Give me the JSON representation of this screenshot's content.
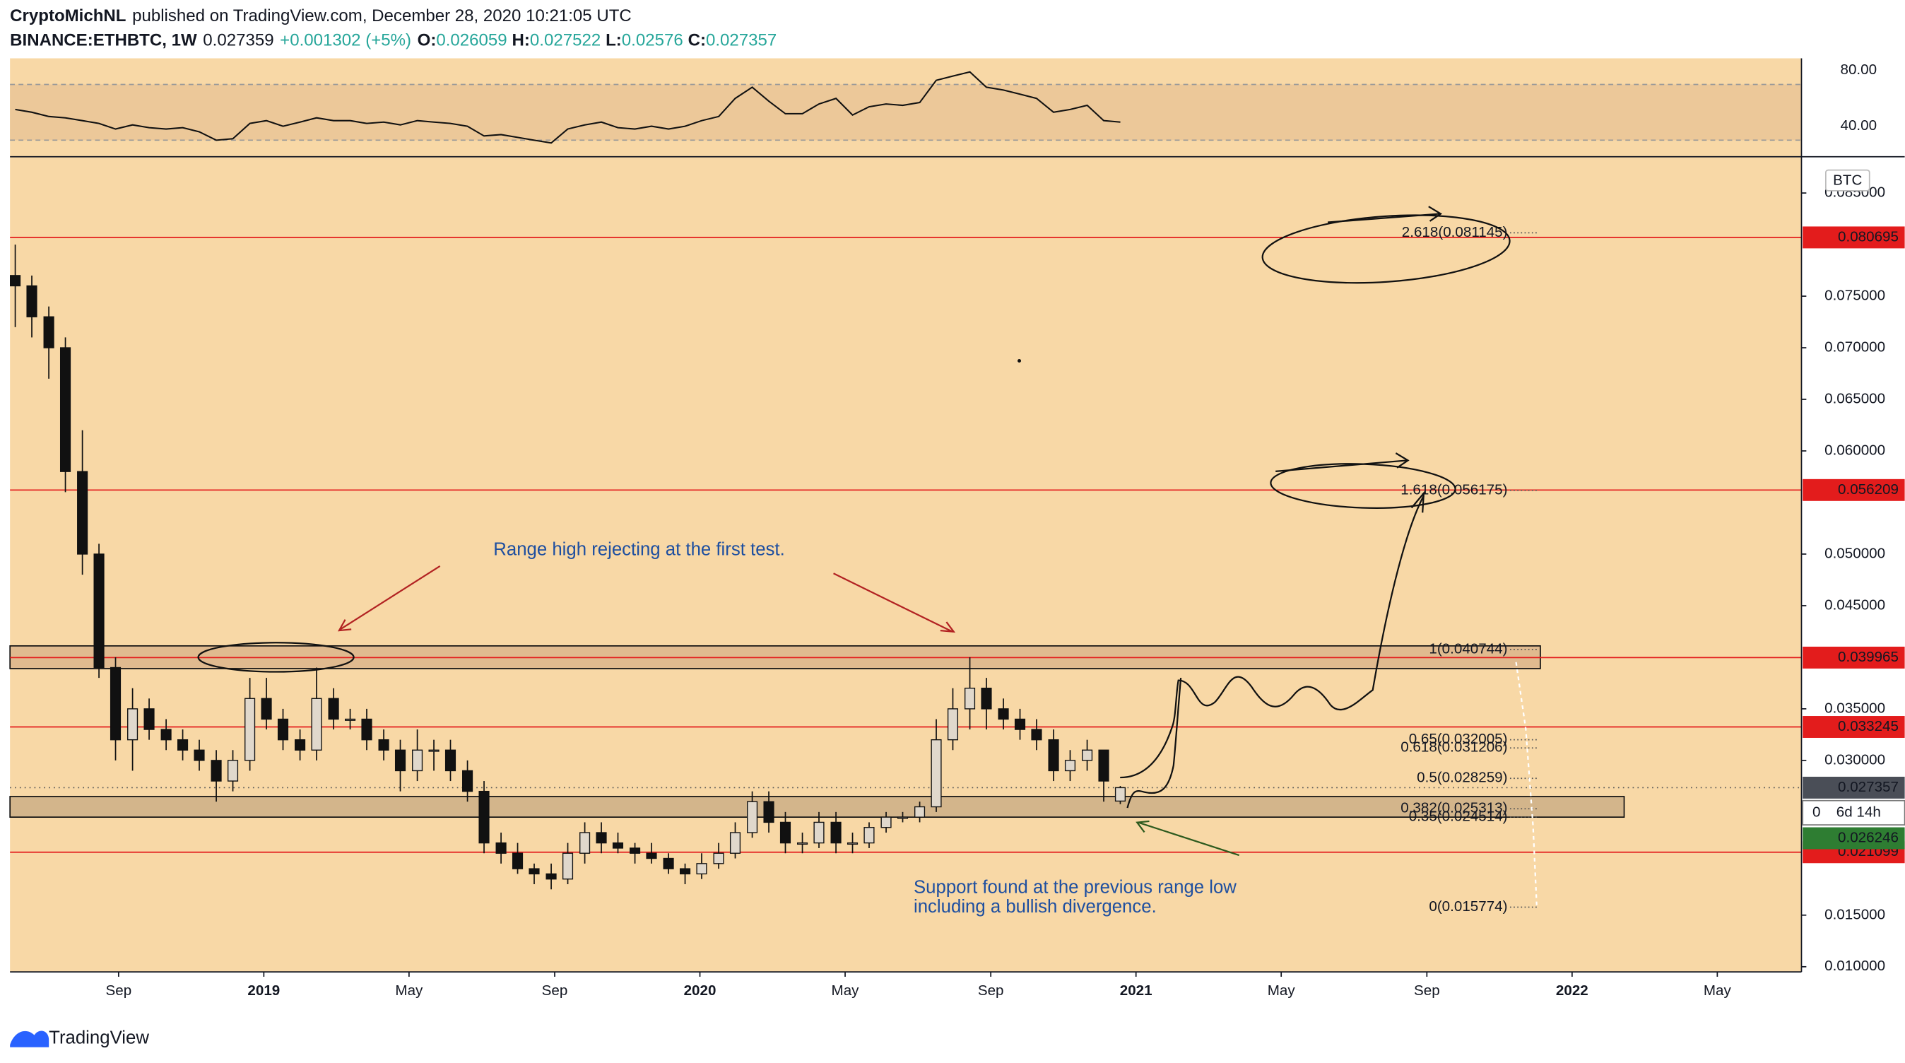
{
  "header": {
    "author": "CryptoMichNL",
    "published": "published on TradingView.com, December 28, 2020 10:21:05 UTC",
    "symbol": "BINANCE:ETHBTC, 1W",
    "price": 0.027359,
    "change": "+0.001302 (+5%)",
    "open_label": "O:",
    "open": 0.026059,
    "high_label": "H:",
    "high": 0.027522,
    "low_label": "L:",
    "low": 0.02576,
    "close_label": "C:",
    "close": 0.027357
  },
  "footer": "TradingView",
  "chart_data": {
    "type": "candlestick",
    "currency": "BTC",
    "x": [
      2018.43,
      2018.468,
      2018.507,
      2018.545,
      2018.584,
      2018.622,
      2018.66,
      2018.699,
      2018.737,
      2018.776,
      2018.814,
      2018.852,
      2018.891,
      2018.929,
      2018.968,
      2019.006,
      2019.044,
      2019.083,
      2019.121,
      2019.16,
      2019.198,
      2019.236,
      2019.275,
      2019.313,
      2019.352,
      2019.39,
      2019.428,
      2019.467,
      2019.505,
      2019.544,
      2019.582,
      2019.62,
      2019.659,
      2019.697,
      2019.736,
      2019.774,
      2019.812,
      2019.851,
      2019.889,
      2019.928,
      2019.966,
      2020.004,
      2020.043,
      2020.081,
      2020.12,
      2020.158,
      2020.196,
      2020.235,
      2020.273,
      2020.312,
      2020.35,
      2020.388,
      2020.427,
      2020.465,
      2020.504,
      2020.542,
      2020.58,
      2020.619,
      2020.657,
      2020.696,
      2020.734,
      2020.772,
      2020.811,
      2020.849,
      2020.888,
      2020.926,
      2020.964
    ],
    "open": [
      0.077,
      0.076,
      0.073,
      0.07,
      0.058,
      0.05,
      0.039,
      0.032,
      0.035,
      0.033,
      0.032,
      0.031,
      0.03,
      0.028,
      0.03,
      0.036,
      0.034,
      0.032,
      0.031,
      0.036,
      0.034,
      0.034,
      0.032,
      0.031,
      0.029,
      0.031,
      0.031,
      0.029,
      0.027,
      0.022,
      0.021,
      0.0195,
      0.019,
      0.0185,
      0.021,
      0.023,
      0.022,
      0.0215,
      0.021,
      0.0205,
      0.0195,
      0.019,
      0.02,
      0.021,
      0.023,
      0.026,
      0.024,
      0.022,
      0.022,
      0.024,
      0.022,
      0.022,
      0.0235,
      0.0245,
      0.0245,
      0.0255,
      0.032,
      0.035,
      0.037,
      0.035,
      0.034,
      0.033,
      0.032,
      0.029,
      0.03,
      0.031,
      0.026059
    ],
    "high": [
      0.08,
      0.077,
      0.074,
      0.071,
      0.062,
      0.051,
      0.04,
      0.037,
      0.036,
      0.034,
      0.033,
      0.032,
      0.031,
      0.031,
      0.038,
      0.038,
      0.035,
      0.033,
      0.039,
      0.037,
      0.035,
      0.035,
      0.033,
      0.032,
      0.033,
      0.032,
      0.032,
      0.03,
      0.028,
      0.023,
      0.022,
      0.02,
      0.02,
      0.022,
      0.024,
      0.024,
      0.023,
      0.022,
      0.022,
      0.021,
      0.02,
      0.021,
      0.022,
      0.024,
      0.027,
      0.027,
      0.025,
      0.023,
      0.025,
      0.025,
      0.023,
      0.024,
      0.025,
      0.025,
      0.026,
      0.034,
      0.037,
      0.04,
      0.038,
      0.036,
      0.035,
      0.034,
      0.033,
      0.031,
      0.032,
      0.031,
      0.027522
    ],
    "low": [
      0.072,
      0.071,
      0.067,
      0.056,
      0.048,
      0.038,
      0.03,
      0.029,
      0.032,
      0.031,
      0.03,
      0.029,
      0.026,
      0.027,
      0.029,
      0.033,
      0.031,
      0.03,
      0.03,
      0.033,
      0.033,
      0.031,
      0.03,
      0.027,
      0.028,
      0.029,
      0.028,
      0.026,
      0.021,
      0.02,
      0.019,
      0.018,
      0.0175,
      0.018,
      0.02,
      0.021,
      0.021,
      0.02,
      0.02,
      0.019,
      0.018,
      0.0185,
      0.0195,
      0.0205,
      0.0225,
      0.023,
      0.021,
      0.021,
      0.0215,
      0.021,
      0.021,
      0.0215,
      0.023,
      0.024,
      0.024,
      0.025,
      0.031,
      0.033,
      0.033,
      0.033,
      0.032,
      0.031,
      0.028,
      0.028,
      0.029,
      0.026,
      0.02576
    ],
    "close": [
      0.076,
      0.073,
      0.07,
      0.058,
      0.05,
      0.039,
      0.032,
      0.035,
      0.033,
      0.032,
      0.031,
      0.03,
      0.028,
      0.03,
      0.036,
      0.034,
      0.032,
      0.031,
      0.036,
      0.034,
      0.034,
      0.032,
      0.031,
      0.029,
      0.031,
      0.031,
      0.029,
      0.027,
      0.022,
      0.021,
      0.0195,
      0.019,
      0.0185,
      0.021,
      0.023,
      0.022,
      0.0215,
      0.021,
      0.0205,
      0.0195,
      0.019,
      0.02,
      0.021,
      0.023,
      0.026,
      0.024,
      0.022,
      0.022,
      0.024,
      0.022,
      0.022,
      0.0235,
      0.0245,
      0.0245,
      0.0255,
      0.032,
      0.035,
      0.037,
      0.035,
      0.034,
      0.033,
      0.032,
      0.029,
      0.03,
      0.031,
      0.028,
      0.027357
    ],
    "up_color": "#e0d8cc",
    "down_color": "#111111",
    "background": "#f8d8a6",
    "xlim": [
      2018.418,
      2022.526
    ],
    "xticks": [
      {
        "value": 2018.667,
        "label": "Sep"
      },
      2019,
      {
        "value": 2019.333,
        "label": "May"
      },
      {
        "value": 2019.667,
        "label": "Sep"
      },
      2020,
      {
        "value": 2020.333,
        "label": "May"
      },
      {
        "value": 2020.667,
        "label": "Sep"
      },
      2021,
      {
        "value": 2021.333,
        "label": "May"
      },
      {
        "value": 2021.667,
        "label": "Sep"
      },
      2022,
      {
        "value": 2022.333,
        "label": "May"
      }
    ],
    "ylim": [
      0.0095,
      0.0884
    ],
    "yticks": [
      {
        "value": 0.01,
        "label": "0.010000"
      },
      {
        "value": 0.015,
        "label": "0.015000"
      },
      {
        "value": 0.03,
        "label": "0.030000"
      },
      {
        "value": 0.035,
        "label": "0.035000"
      },
      {
        "value": 0.045,
        "label": "0.045000"
      },
      {
        "value": 0.05,
        "label": "0.050000"
      },
      {
        "value": 0.06,
        "label": "0.060000"
      },
      {
        "value": 0.065,
        "label": "0.065000"
      },
      {
        "value": 0.07,
        "label": "0.070000"
      },
      {
        "value": 0.075,
        "label": "0.075000"
      },
      {
        "value": 0.085,
        "label": "0.085000"
      }
    ],
    "levels": [
      0.080695,
      0.056209,
      0.039965,
      0.033245,
      0.021099
    ],
    "level_color": "#e31c1c",
    "zones": [
      [
        0.0389,
        0.0411
      ],
      [
        0.0245,
        0.0265
      ]
    ],
    "fibs": [
      {
        "value": 0.081145,
        "label": "2.618(0.081145)"
      },
      {
        "value": 0.056175,
        "label": "1.618(0.056175)"
      },
      {
        "value": 0.040744,
        "label": "1(0.040744)"
      },
      {
        "value": 0.032005,
        "label": "0.65(0.032005)"
      },
      {
        "value": 0.031206,
        "label": "0.618(0.031206)"
      },
      {
        "value": 0.028259,
        "label": "0.5(0.028259)"
      },
      {
        "value": 0.025313,
        "label": "0.382(0.025313)"
      },
      {
        "value": 0.024514,
        "label": "0.35(0.024514)"
      },
      {
        "value": 0.015774,
        "label": "0(0.015774)"
      }
    ],
    "last_price": 0.027357,
    "countdown_price": "0",
    "countdown": "6d 14h",
    "prev_price": 0.026246,
    "annotations": [
      "Range high rejecting at the first test.",
      "Support found at the previous range low",
      "including a bullish divergence."
    ],
    "rsi": {
      "color": "#111111",
      "band": [
        30,
        70
      ],
      "ylim": [
        19,
        87
      ],
      "yticks": [
        {
          "value": 80,
          "label": "80.00"
        },
        {
          "value": 40,
          "label": "40.00"
        }
      ],
      "values": [
        52,
        50,
        47,
        46,
        44,
        42,
        38,
        41,
        39,
        38,
        39,
        36,
        30,
        31,
        42,
        44,
        40,
        43,
        46,
        44,
        44,
        42,
        43,
        41,
        44,
        43,
        42,
        40,
        33,
        34,
        32,
        30,
        28,
        38,
        41,
        43,
        39,
        38,
        40,
        38,
        40,
        44,
        47,
        60,
        68,
        58,
        49,
        49,
        56,
        60,
        48,
        54,
        56,
        55,
        57,
        73,
        76,
        79,
        68,
        66,
        63,
        60,
        50,
        52,
        55,
        44,
        43
      ]
    }
  }
}
